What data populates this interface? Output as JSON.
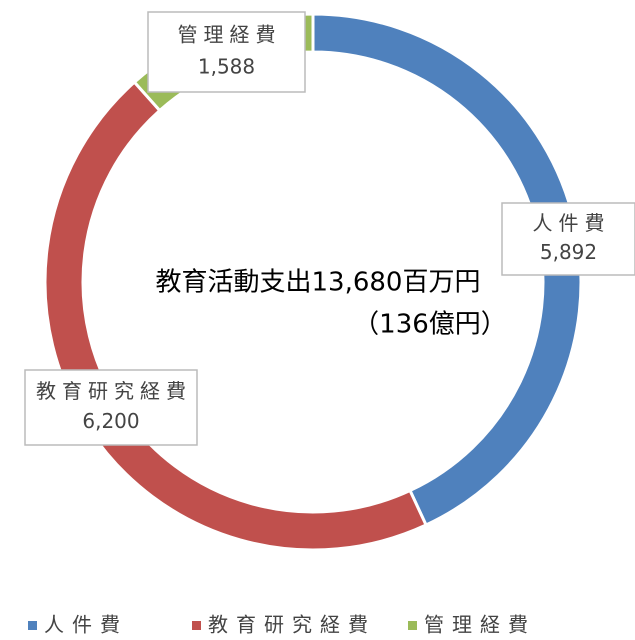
{
  "chart_data": {
    "type": "donut",
    "categories": [
      "人件費",
      "教育研究経費",
      "管理経費"
    ],
    "values": [
      5892,
      6200,
      1588
    ],
    "value_labels": [
      "5,892",
      "6,200",
      "1,588"
    ],
    "colors": [
      "#4f81bd",
      "#c0504d",
      "#9bbb59"
    ],
    "annotations": [
      "教育活動支出13,680百万円",
      "（136億円）"
    ],
    "legend": "bottom"
  }
}
